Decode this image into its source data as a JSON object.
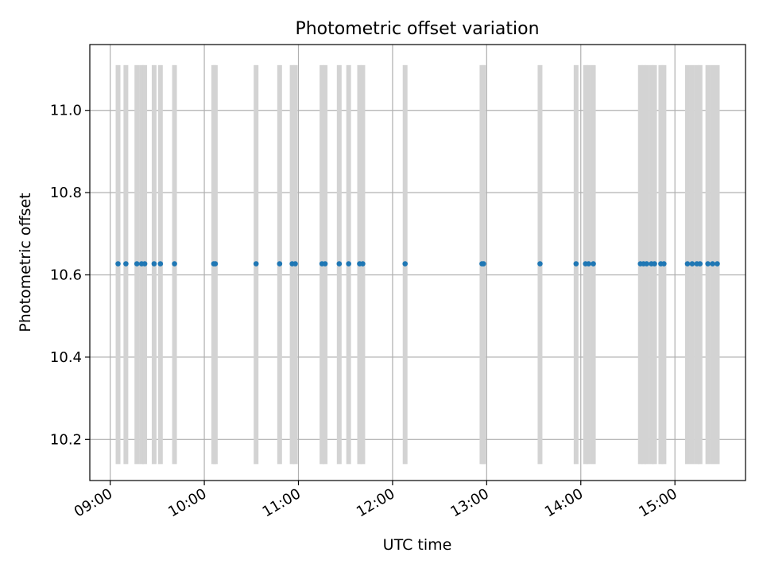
{
  "chart_data": {
    "type": "scatter",
    "title": "Photometric offset variation",
    "xlabel": "UTC time",
    "ylabel": "Photometric offset",
    "x_axis_type": "time",
    "xlim": [
      "08:47",
      "15:45"
    ],
    "ylim": [
      10.1,
      11.16
    ],
    "xticks": [
      "09:00",
      "10:00",
      "11:00",
      "12:00",
      "13:00",
      "14:00",
      "15:00"
    ],
    "yticks": [
      "10.2",
      "10.4",
      "10.6",
      "10.8",
      "11.0"
    ],
    "grid": true,
    "marker_color": "#1f77b4",
    "band_color": "#d3d3d3",
    "band_y_range": [
      10.14,
      11.11
    ],
    "series": [
      {
        "x": [
          "09:05",
          "09:10",
          "09:17",
          "09:20",
          "09:22",
          "09:28",
          "09:32",
          "09:41",
          "10:06",
          "10:07",
          "10:33",
          "10:48",
          "10:56",
          "10:58",
          "11:15",
          "11:17",
          "11:26",
          "11:32",
          "11:39",
          "11:41",
          "12:08",
          "12:57",
          "12:58",
          "13:34",
          "13:57",
          "14:03",
          "14:05",
          "14:08",
          "14:38",
          "14:40",
          "14:42",
          "14:45",
          "14:47",
          "14:51",
          "14:53",
          "15:08",
          "15:11",
          "15:14",
          "15:16",
          "15:21",
          "15:24",
          "15:27"
        ],
        "y": [
          10.627,
          10.627,
          10.627,
          10.627,
          10.627,
          10.627,
          10.627,
          10.627,
          10.627,
          10.627,
          10.627,
          10.627,
          10.627,
          10.627,
          10.627,
          10.627,
          10.627,
          10.627,
          10.627,
          10.627,
          10.627,
          10.627,
          10.627,
          10.627,
          10.627,
          10.627,
          10.627,
          10.627,
          10.627,
          10.627,
          10.627,
          10.627,
          10.627,
          10.627,
          10.627,
          10.627,
          10.627,
          10.627,
          10.627,
          10.627,
          10.627,
          10.627
        ]
      }
    ],
    "bands": [
      "09:05",
      "09:10",
      "09:17",
      "09:20",
      "09:22",
      "09:28",
      "09:32",
      "09:41",
      "10:06",
      "10:07",
      "10:33",
      "10:48",
      "10:56",
      "10:58",
      "11:15",
      "11:17",
      "11:26",
      "11:32",
      "11:39",
      "11:41",
      "12:08",
      "12:57",
      "12:58",
      "13:34",
      "13:57",
      "14:03",
      "14:05",
      "14:08",
      "14:38",
      "14:40",
      "14:42",
      "14:45",
      "14:47",
      "14:51",
      "14:53",
      "15:08",
      "15:11",
      "15:14",
      "15:16",
      "15:21",
      "15:24",
      "15:27"
    ]
  }
}
